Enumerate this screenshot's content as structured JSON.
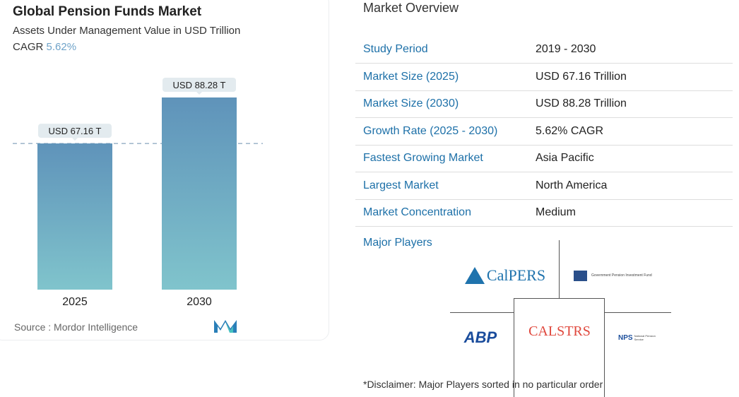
{
  "chart_data": {
    "type": "bar",
    "title": "Global Pension Funds Market",
    "subtitle": "Assets Under Management Value in USD Trillion",
    "cagr_label": "CAGR",
    "cagr_value": "5.62%",
    "categories": [
      "2025",
      "2030"
    ],
    "values": [
      67.16,
      88.28
    ],
    "data_labels": [
      "USD 67.16 T",
      "USD 88.28 T"
    ],
    "ylim": [
      0,
      88.28
    ],
    "reference_line": "dashed at 2025 value",
    "colors": {
      "bar_top": "#5f93ba",
      "bar_bottom": "#80c4cc"
    },
    "source": "Source :  Mordor Intelligence"
  },
  "overview": {
    "title": "Market Overview",
    "rows": [
      {
        "k": "Study Period",
        "v": "2019 - 2030"
      },
      {
        "k": "Market Size (2025)",
        "v": "USD 67.16 Trillion"
      },
      {
        "k": "Market Size (2030)",
        "v": "USD 88.28 Trillion"
      },
      {
        "k": "Growth Rate (2025 - 2030)",
        "v": "5.62% CAGR"
      },
      {
        "k": "Fastest Growing Market",
        "v": "Asia Pacific"
      },
      {
        "k": "Largest Market",
        "v": "North America"
      },
      {
        "k": "Market Concentration",
        "v": "Medium"
      }
    ],
    "major_players_label": "Major Players",
    "players": [
      "CalPERS",
      "Government Pension Investment Fund",
      "ABP",
      "CALSTRS",
      "NPS"
    ],
    "disclaimer": "*Disclaimer: Major Players sorted in no particular order"
  }
}
